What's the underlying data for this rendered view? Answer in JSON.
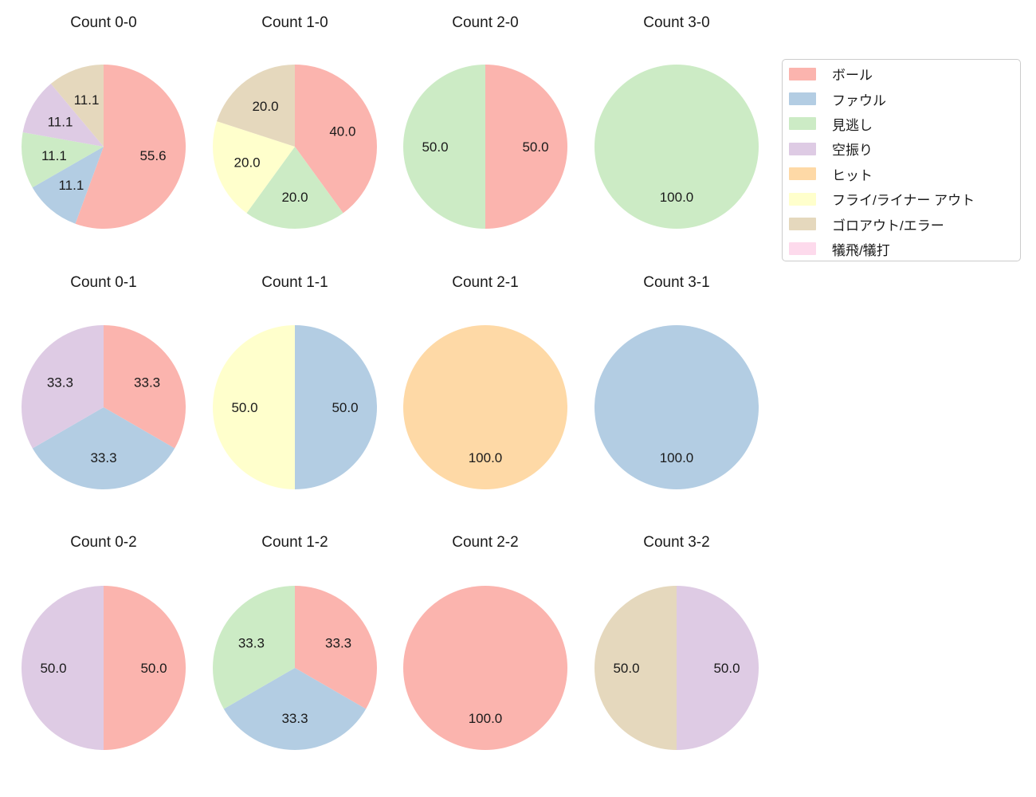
{
  "figure": {
    "background": "#ffffff",
    "text_color": "#1a1a1a"
  },
  "legend": {
    "position": "upper right",
    "border_color": "#cccccc",
    "items": [
      {
        "label": "ボール",
        "color": "#fbb4ae"
      },
      {
        "label": "ファウル",
        "color": "#b3cde3"
      },
      {
        "label": "見逃し",
        "color": "#ccebc5"
      },
      {
        "label": "空振り",
        "color": "#decbe4"
      },
      {
        "label": "ヒット",
        "color": "#fed9a6"
      },
      {
        "label": "フライ/ライナー アウト",
        "color": "#ffffcc"
      },
      {
        "label": "ゴロアウト/エラー",
        "color": "#e5d8bd"
      },
      {
        "label": "犠飛/犠打",
        "color": "#fddaec"
      }
    ]
  },
  "chart_data": [
    {
      "type": "pie",
      "title": "Count 0-0",
      "start_angle": 90,
      "direction": "clockwise",
      "slices": [
        {
          "label": "ボール",
          "value": 55.6
        },
        {
          "label": "ファウル",
          "value": 11.1
        },
        {
          "label": "見逃し",
          "value": 11.1
        },
        {
          "label": "空振り",
          "value": 11.1
        },
        {
          "label": "ゴロアウト/エラー",
          "value": 11.1
        }
      ]
    },
    {
      "type": "pie",
      "title": "Count 1-0",
      "start_angle": 90,
      "direction": "clockwise",
      "slices": [
        {
          "label": "ボール",
          "value": 40.0
        },
        {
          "label": "見逃し",
          "value": 20.0
        },
        {
          "label": "フライ/ライナー アウト",
          "value": 20.0
        },
        {
          "label": "ゴロアウト/エラー",
          "value": 20.0
        }
      ]
    },
    {
      "type": "pie",
      "title": "Count 2-0",
      "start_angle": 90,
      "direction": "clockwise",
      "slices": [
        {
          "label": "ボール",
          "value": 50.0
        },
        {
          "label": "見逃し",
          "value": 50.0
        }
      ]
    },
    {
      "type": "pie",
      "title": "Count 3-0",
      "start_angle": 90,
      "direction": "clockwise",
      "slices": [
        {
          "label": "見逃し",
          "value": 100.0
        }
      ]
    },
    {
      "type": "pie",
      "title": "Count 0-1",
      "start_angle": 90,
      "direction": "clockwise",
      "slices": [
        {
          "label": "ボール",
          "value": 33.3
        },
        {
          "label": "ファウル",
          "value": 33.3
        },
        {
          "label": "空振り",
          "value": 33.3
        }
      ]
    },
    {
      "type": "pie",
      "title": "Count 1-1",
      "start_angle": 90,
      "direction": "clockwise",
      "slices": [
        {
          "label": "ファウル",
          "value": 50.0
        },
        {
          "label": "フライ/ライナー アウト",
          "value": 50.0
        }
      ]
    },
    {
      "type": "pie",
      "title": "Count 2-1",
      "start_angle": 90,
      "direction": "clockwise",
      "slices": [
        {
          "label": "ヒット",
          "value": 100.0
        }
      ]
    },
    {
      "type": "pie",
      "title": "Count 3-1",
      "start_angle": 90,
      "direction": "clockwise",
      "slices": [
        {
          "label": "ファウル",
          "value": 100.0
        }
      ]
    },
    {
      "type": "pie",
      "title": "Count 0-2",
      "start_angle": 90,
      "direction": "clockwise",
      "slices": [
        {
          "label": "ボール",
          "value": 50.0
        },
        {
          "label": "空振り",
          "value": 50.0
        }
      ]
    },
    {
      "type": "pie",
      "title": "Count 1-2",
      "start_angle": 90,
      "direction": "clockwise",
      "slices": [
        {
          "label": "ボール",
          "value": 33.3
        },
        {
          "label": "ファウル",
          "value": 33.3
        },
        {
          "label": "見逃し",
          "value": 33.3
        }
      ]
    },
    {
      "type": "pie",
      "title": "Count 2-2",
      "start_angle": 90,
      "direction": "clockwise",
      "slices": [
        {
          "label": "ボール",
          "value": 100.0
        }
      ]
    },
    {
      "type": "pie",
      "title": "Count 3-2",
      "start_angle": 90,
      "direction": "clockwise",
      "slices": [
        {
          "label": "空振り",
          "value": 50.0
        },
        {
          "label": "ゴロアウト/エラー",
          "value": 50.0
        }
      ]
    }
  ]
}
